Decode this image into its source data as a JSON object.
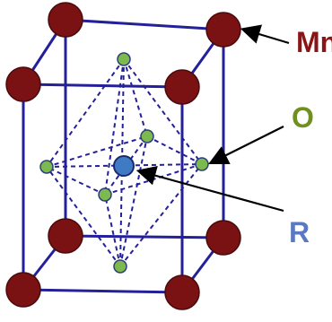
{
  "labels": {
    "mn": "Mn",
    "o": "O",
    "r": "R"
  },
  "colors": {
    "background": "#ffffff",
    "edge": "#24209a",
    "mn_atom": "#7a1214",
    "mn_label": "#8b1417",
    "o_atom": "#7cba4f",
    "o_atom_stroke": "#2d3f7a",
    "o_label": "#6f8f1f",
    "r_atom": "#3e7bc4",
    "r_atom_stroke": "#1a2a6b",
    "r_label": "#5b79c2",
    "dashed": "#24209a",
    "arrow": "#000000"
  },
  "atoms": {
    "mn_count": 8,
    "o_count": 6,
    "r_count": 1
  }
}
